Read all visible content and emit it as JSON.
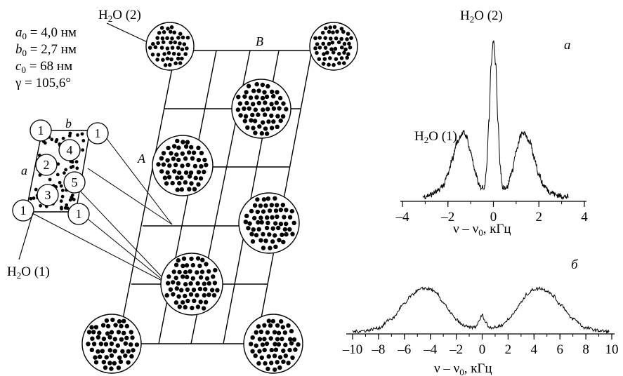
{
  "params": {
    "a0": {
      "sym": "a",
      "sub": "0",
      "rest": " = 4,0 нм"
    },
    "b0": {
      "sym": "b",
      "sub": "0",
      "rest": " = 2,7 нм"
    },
    "c0": {
      "sym": "c",
      "sub": "0",
      "rest": " = 68 нм"
    },
    "gamma": "γ = 105,6°"
  },
  "labels": {
    "h2o": "H",
    "h2o_sub": "2",
    "h2o_tail": "O",
    "h2o_site2": " (2)",
    "h2o_site1": " (1)",
    "lattice_A": "A",
    "lattice_B": "B",
    "cell_a": "a",
    "cell_b": "b"
  },
  "cell_circles": [
    "1",
    "1",
    "4",
    "2",
    "5",
    "3",
    "1",
    "1"
  ],
  "spectrum_a": {
    "panel_label": "а",
    "peak_center_label": "H2O (2)",
    "peak_side_label": "H2O (1)",
    "xlabel": {
      "nu": "ν",
      "minus": " – ",
      "nu0": "ν",
      "sub": "0",
      "unit": ", кГц"
    },
    "ticks": [
      "–4",
      "–2",
      "0",
      "2",
      "4"
    ]
  },
  "spectrum_b": {
    "panel_label": "б",
    "xlabel": {
      "nu": "ν",
      "minus": " – ",
      "nu0": "ν",
      "sub": "0",
      "unit": ", кГц"
    },
    "ticks": [
      "–10",
      "–8",
      "–6",
      "–4",
      "–2",
      "0",
      "2",
      "4",
      "6",
      "8",
      "10"
    ]
  },
  "chart_data": [
    {
      "type": "line",
      "name": "а",
      "xlim": [
        -4,
        4
      ],
      "x": [
        -3.1,
        -2.8,
        -2.5,
        -2.2,
        -2.0,
        -1.8,
        -1.6,
        -1.4,
        -1.3,
        -1.2,
        -1.0,
        -0.8,
        -0.6,
        -0.4,
        -0.3,
        -0.2,
        -0.1,
        0.0,
        0.1,
        0.2,
        0.3,
        0.4,
        0.6,
        0.8,
        1.0,
        1.2,
        1.3,
        1.4,
        1.6,
        1.8,
        2.0,
        2.2,
        2.5,
        2.8,
        3.1,
        3.3
      ],
      "y": [
        0.02,
        0.03,
        0.05,
        0.09,
        0.16,
        0.26,
        0.36,
        0.41,
        0.42,
        0.4,
        0.3,
        0.17,
        0.08,
        0.08,
        0.2,
        0.5,
        0.85,
        1.0,
        0.85,
        0.5,
        0.2,
        0.08,
        0.08,
        0.17,
        0.3,
        0.4,
        0.42,
        0.41,
        0.36,
        0.26,
        0.16,
        0.09,
        0.05,
        0.03,
        0.02,
        0.02
      ]
    },
    {
      "type": "line",
      "name": "б",
      "xlim": [
        -10,
        10
      ],
      "x": [
        -10,
        -9,
        -8,
        -7,
        -6,
        -5.5,
        -5,
        -4.5,
        -4,
        -3.5,
        -3,
        -2.5,
        -2,
        -1.5,
        -1,
        -0.5,
        -0.3,
        0,
        0.3,
        0.5,
        1,
        1.5,
        2,
        2.5,
        3,
        3.5,
        4,
        4.5,
        5,
        5.5,
        6,
        7,
        8,
        9,
        9.8
      ],
      "y": [
        0.02,
        0.04,
        0.1,
        0.3,
        0.62,
        0.8,
        0.92,
        0.97,
        0.95,
        0.85,
        0.66,
        0.45,
        0.28,
        0.16,
        0.11,
        0.12,
        0.22,
        0.38,
        0.22,
        0.12,
        0.11,
        0.16,
        0.28,
        0.45,
        0.66,
        0.85,
        0.95,
        0.97,
        0.92,
        0.8,
        0.62,
        0.3,
        0.1,
        0.04,
        0.02
      ]
    }
  ]
}
